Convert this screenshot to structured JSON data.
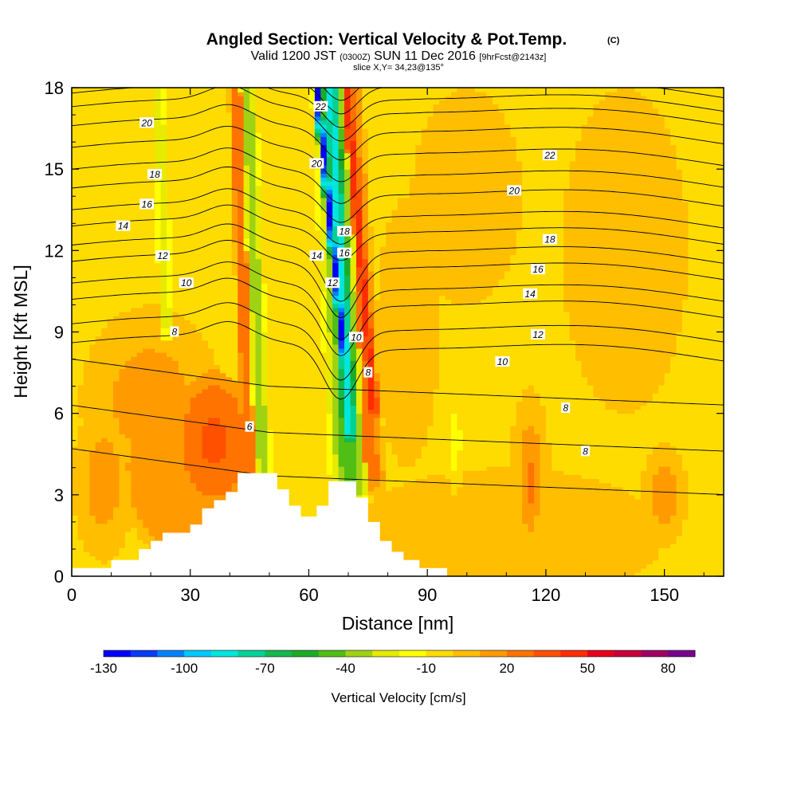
{
  "chart_data": {
    "type": "heatmap",
    "title": "Angled Section: Vertical Velocity & Pot.Temp.",
    "title_mark": "(C)",
    "subtitle": {
      "valid": "Valid 1200 JST",
      "zulu": "(0300Z)",
      "date": "SUN 11 Dec 2016",
      "forecast": "[9hrFcst@2143z]"
    },
    "slice_label": "slice X,Y= 34,23@135°",
    "xlabel": "Distance [nm]",
    "ylabel": "Height [Kft MSL]",
    "xlim": [
      0,
      165
    ],
    "ylim": [
      0,
      18
    ],
    "xticks": [
      {
        "value": 0,
        "label": "0"
      },
      {
        "value": 30,
        "label": "30"
      },
      {
        "value": 60,
        "label": "60"
      },
      {
        "value": 90,
        "label": "90"
      },
      {
        "value": 120,
        "label": "120"
      },
      {
        "value": 150,
        "label": "150"
      }
    ],
    "yticks": [
      {
        "value": 0,
        "label": "0"
      },
      {
        "value": 3,
        "label": "3"
      },
      {
        "value": 6,
        "label": "6"
      },
      {
        "value": 9,
        "label": "9"
      },
      {
        "value": 12,
        "label": "12"
      },
      {
        "value": 15,
        "label": "15"
      },
      {
        "value": 18,
        "label": "18"
      }
    ],
    "grid": false,
    "colorbar": {
      "label": "Vertical Velocity [cm/s]",
      "placement": "bottom",
      "min": -130,
      "max": 90,
      "step": 10,
      "tick_labels": [
        {
          "value": -130,
          "label": "-130"
        },
        {
          "value": -100,
          "label": "-100"
        },
        {
          "value": -70,
          "label": "-70"
        },
        {
          "value": -40,
          "label": "-40"
        },
        {
          "value": -10,
          "label": "-10"
        },
        {
          "value": 20,
          "label": "20"
        },
        {
          "value": 50,
          "label": "50"
        },
        {
          "value": 80,
          "label": "80"
        }
      ],
      "colors": [
        "#0000ff",
        "#0a3cf5",
        "#0082ff",
        "#00c8ff",
        "#00e6dc",
        "#00d296",
        "#14b950",
        "#1eaa28",
        "#50be14",
        "#a0d214",
        "#e6eb00",
        "#ffff00",
        "#ffdc00",
        "#ffbe00",
        "#ff9b00",
        "#ff7300",
        "#ff5000",
        "#ff2d00",
        "#e6001e",
        "#c8003c",
        "#a00064",
        "#78008c"
      ]
    },
    "velocity_field": {
      "description_units": "cm/s",
      "background": -2,
      "features": [
        {
          "kind": "band",
          "x_bottom": 70.5,
          "x_top": 65.5,
          "z_from": 3.0,
          "z_to": 18,
          "half_width": 4.2,
          "value": -45
        },
        {
          "kind": "band",
          "x_bottom": 70.5,
          "x_top": 65.5,
          "z_from": 5.0,
          "z_to": 18,
          "half_width": 2.2,
          "value": -85
        },
        {
          "kind": "band",
          "x_bottom": 69.0,
          "x_top": 62.0,
          "z_from": 8.0,
          "z_to": 18,
          "half_width": 1.0,
          "value": -125
        },
        {
          "kind": "band",
          "x_bottom": 76.5,
          "x_top": 69.5,
          "z_from": 6.0,
          "z_to": 18,
          "half_width": 1.4,
          "value": 45
        },
        {
          "kind": "band",
          "x_bottom": 76.0,
          "x_top": 70.0,
          "z_from": 3.5,
          "z_to": 18,
          "half_width": 2.8,
          "value": 25
        },
        {
          "kind": "band",
          "x_bottom": 48.5,
          "x_top": 44.5,
          "z_from": 3.5,
          "z_to": 18,
          "half_width": 2.0,
          "value": -35
        },
        {
          "kind": "band",
          "x_bottom": 45.0,
          "x_top": 41.5,
          "z_from": 3.8,
          "z_to": 18,
          "half_width": 1.5,
          "value": 30
        },
        {
          "kind": "band",
          "x_bottom": 24.0,
          "x_top": 22.0,
          "z_from": 9.0,
          "z_to": 18,
          "half_width": 1.6,
          "value": -25
        },
        {
          "kind": "blob",
          "x": 36,
          "z": 5.0,
          "rx": 10,
          "rz": 2.6,
          "value": 32
        },
        {
          "kind": "blob",
          "x": 28,
          "z": 4.0,
          "rx": 16,
          "rz": 3.5,
          "value": 18
        },
        {
          "kind": "blob",
          "x": 20,
          "z": 6.5,
          "rx": 18,
          "rz": 3.5,
          "value": 12
        },
        {
          "kind": "blob",
          "x": 8,
          "z": 3.5,
          "rx": 8,
          "rz": 3.0,
          "value": 12
        },
        {
          "kind": "blob",
          "x": 116,
          "z": 3.5,
          "rx": 2.5,
          "rz": 2.0,
          "value": 22
        },
        {
          "kind": "blob",
          "x": 116,
          "z": 4.0,
          "rx": 5,
          "rz": 3.0,
          "value": 12
        },
        {
          "kind": "blob",
          "x": 97,
          "z": 5.0,
          "rx": 2.5,
          "rz": 2.0,
          "value": -12
        },
        {
          "kind": "blob",
          "x": 150,
          "z": 3.0,
          "rx": 6,
          "rz": 2.0,
          "value": 12
        },
        {
          "kind": "blob",
          "x": 140,
          "z": 12,
          "rx": 16,
          "rz": 6,
          "value": 10
        },
        {
          "kind": "blob",
          "x": 100,
          "z": 14,
          "rx": 14,
          "rz": 4,
          "value": 8
        },
        {
          "kind": "blob",
          "x": 85,
          "z": 9,
          "rx": 8,
          "rz": 5,
          "value": 8
        },
        {
          "kind": "blob",
          "x": 110,
          "z": 1.5,
          "rx": 40,
          "rz": 2.5,
          "value": 6
        }
      ]
    },
    "theta_contours": {
      "units": "C",
      "levels": [
        5,
        6,
        7,
        8,
        9,
        10,
        11,
        12,
        13,
        14,
        15,
        16,
        17,
        18,
        19,
        20,
        21,
        22,
        23
      ],
      "base_height": {
        "5": 3.7,
        "6": 5.3,
        "7": 7.0,
        "8": 8.6,
        "9": 9.3,
        "10": 10.2,
        "11": 10.8,
        "12": 11.6,
        "13": 12.2,
        "14": 12.9,
        "15": 13.5,
        "16": 14.3,
        "17": 15.0,
        "18": 15.8,
        "19": 16.6,
        "20": 17.3,
        "21": 17.8,
        "22": 18.3,
        "23": 18.8
      },
      "labels": [
        {
          "text": "6",
          "x": 45,
          "z": 5.5
        },
        {
          "text": "8",
          "x": 26,
          "z": 9.0
        },
        {
          "text": "10",
          "x": 29,
          "z": 10.8
        },
        {
          "text": "12",
          "x": 23,
          "z": 11.8
        },
        {
          "text": "14",
          "x": 13,
          "z": 12.9
        },
        {
          "text": "16",
          "x": 19,
          "z": 13.7
        },
        {
          "text": "18",
          "x": 21,
          "z": 14.8
        },
        {
          "text": "20",
          "x": 19,
          "z": 16.7
        },
        {
          "text": "14",
          "x": 62,
          "z": 11.8
        },
        {
          "text": "20",
          "x": 62,
          "z": 15.2
        },
        {
          "text": "22",
          "x": 63,
          "z": 17.3
        },
        {
          "text": "12",
          "x": 66,
          "z": 10.8
        },
        {
          "text": "18",
          "x": 69,
          "z": 12.7
        },
        {
          "text": "16",
          "x": 69,
          "z": 11.9
        },
        {
          "text": "10",
          "x": 72,
          "z": 8.8
        },
        {
          "text": "8",
          "x": 75,
          "z": 7.5
        },
        {
          "text": "22",
          "x": 121,
          "z": 15.5
        },
        {
          "text": "20",
          "x": 112,
          "z": 14.2
        },
        {
          "text": "18",
          "x": 121,
          "z": 12.4
        },
        {
          "text": "16",
          "x": 118,
          "z": 11.3
        },
        {
          "text": "14",
          "x": 116,
          "z": 10.4
        },
        {
          "text": "12",
          "x": 118,
          "z": 8.9
        },
        {
          "text": "10",
          "x": 109,
          "z": 7.9
        },
        {
          "text": "8",
          "x": 125,
          "z": 6.2
        },
        {
          "text": "8",
          "x": 130,
          "z": 4.6
        }
      ]
    },
    "terrain": {
      "fill_color": "#ffffff",
      "profile": [
        [
          0,
          0.3
        ],
        [
          10,
          0.3
        ],
        [
          10,
          0.6
        ],
        [
          17,
          0.6
        ],
        [
          17,
          1.0
        ],
        [
          20,
          1.0
        ],
        [
          20,
          1.3
        ],
        [
          23,
          1.3
        ],
        [
          23,
          1.6
        ],
        [
          30,
          1.6
        ],
        [
          30,
          1.9
        ],
        [
          33,
          1.9
        ],
        [
          33,
          2.5
        ],
        [
          36,
          2.5
        ],
        [
          36,
          2.8
        ],
        [
          39,
          2.8
        ],
        [
          39,
          3.1
        ],
        [
          42,
          3.1
        ],
        [
          42,
          3.8
        ],
        [
          52,
          3.8
        ],
        [
          52,
          3.2
        ],
        [
          55,
          3.2
        ],
        [
          55,
          2.6
        ],
        [
          58,
          2.6
        ],
        [
          58,
          2.2
        ],
        [
          62,
          2.2
        ],
        [
          62,
          2.6
        ],
        [
          65,
          2.6
        ],
        [
          65,
          3.5
        ],
        [
          72,
          3.5
        ],
        [
          72,
          2.9
        ],
        [
          75,
          2.9
        ],
        [
          75,
          2.0
        ],
        [
          78,
          2.0
        ],
        [
          78,
          1.3
        ],
        [
          81,
          1.3
        ],
        [
          81,
          0.9
        ],
        [
          84,
          0.9
        ],
        [
          84,
          0.6
        ],
        [
          88,
          0.6
        ],
        [
          88,
          0.3
        ],
        [
          95,
          0.3
        ],
        [
          95,
          0
        ]
      ]
    }
  }
}
